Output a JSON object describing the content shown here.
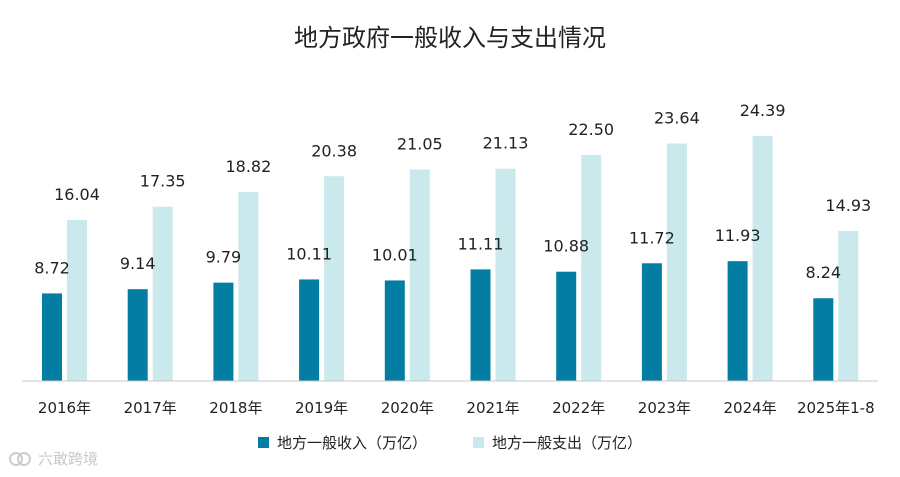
{
  "chart_data": {
    "type": "bar",
    "title": "地方政府一般收入与支出情况",
    "categories": [
      "2016年",
      "2017年",
      "2018年",
      "2019年",
      "2020年",
      "2021年",
      "2022年",
      "2023年",
      "2024年",
      "2025年1-8"
    ],
    "series": [
      {
        "name": "地方一般收入（万亿）",
        "color": "#037ea2",
        "values": [
          8.72,
          9.14,
          9.79,
          10.11,
          10.01,
          11.11,
          10.88,
          11.72,
          11.93,
          8.24
        ],
        "labels": [
          "8.72",
          "9.14",
          "9.79",
          "10.11",
          "10.01",
          "11.11",
          "10.88",
          "11.72",
          "11.93",
          "8.24"
        ]
      },
      {
        "name": "地方一般支出（万亿）",
        "color": "#c9e9ec",
        "values": [
          16.04,
          17.35,
          18.82,
          20.38,
          21.05,
          21.13,
          22.5,
          23.64,
          24.39,
          14.93
        ],
        "labels": [
          "16.04",
          "17.35",
          "18.82",
          "20.38",
          "21.05",
          "21.13",
          "22.50",
          "23.64",
          "24.39",
          "14.93"
        ]
      }
    ],
    "ylim": [
      0,
      26
    ],
    "grid": false,
    "legend": "bottom"
  },
  "watermark": {
    "text": "六敢跨境"
  }
}
